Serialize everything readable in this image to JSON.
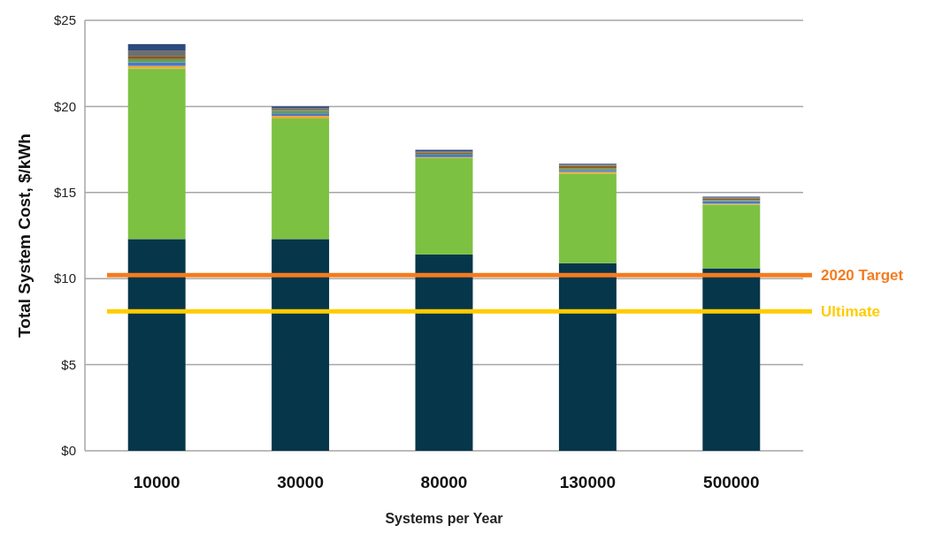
{
  "chart_data": {
    "type": "bar",
    "stacked": true,
    "xlabel": "Systems per Year",
    "ylabel": "Total System Cost, $/kWh",
    "categories": [
      "10000",
      "30000",
      "80000",
      "130000",
      "500000"
    ],
    "series": [
      {
        "color": "#06364a",
        "values": [
          12.3,
          12.3,
          11.4,
          10.9,
          10.6
        ]
      },
      {
        "color": "#7dc142",
        "values": [
          9.9,
          7.0,
          5.6,
          5.2,
          3.7
        ]
      },
      {
        "color": "#f0a830",
        "values": [
          0.15,
          0.15,
          0.05,
          0.1,
          0.05
        ]
      },
      {
        "color": "#4a78c8",
        "values": [
          0.2,
          0.15,
          0.15,
          0.1,
          0.15
        ]
      },
      {
        "color": "#5f9e5a",
        "values": [
          0.2,
          0.15,
          0.05,
          0.1,
          0.05
        ]
      },
      {
        "color": "#8b5a1e",
        "values": [
          0.15,
          0.05,
          0.08,
          0.15,
          0.1
        ]
      },
      {
        "color": "#6f6f6f",
        "values": [
          0.35,
          0.1,
          0.05,
          0.07,
          0.06
        ]
      },
      {
        "color": "#2e4a7d",
        "values": [
          0.37,
          0.1,
          0.1,
          0.05,
          0.05
        ]
      }
    ],
    "ylim": [
      0,
      25
    ],
    "yticks": [
      {
        "value": 0,
        "label": "$0"
      },
      {
        "value": 5,
        "label": "$5"
      },
      {
        "value": 10,
        "label": "$10"
      },
      {
        "value": 15,
        "label": "$15"
      },
      {
        "value": 20,
        "label": "$20"
      },
      {
        "value": 25,
        "label": "$25"
      }
    ],
    "grid": "y",
    "ref_lines": [
      {
        "axis": "y",
        "value": 10.2,
        "label": "2020 Target",
        "color": "#f47c20"
      },
      {
        "axis": "y",
        "value": 8.1,
        "label": "Ultimate",
        "color": "#ffcc00"
      }
    ]
  }
}
